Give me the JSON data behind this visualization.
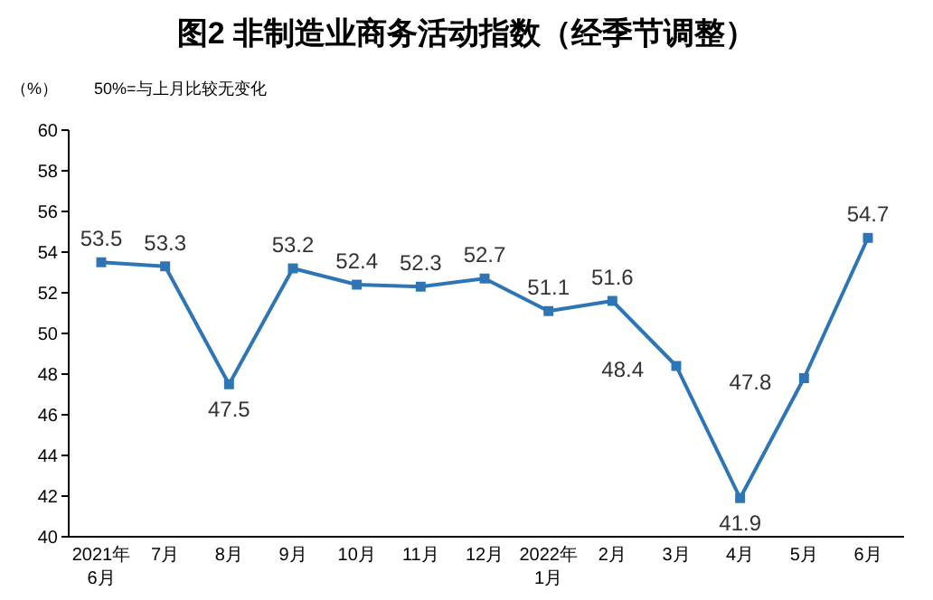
{
  "chart_data": {
    "type": "line",
    "title": "图2  非制造业商务活动指数（经季节调整）",
    "ylabel": "（%）",
    "annotations": [
      "50%=与上月比较无变化"
    ],
    "categories": [
      "2021年\n6月",
      "7月",
      "8月",
      "9月",
      "10月",
      "11月",
      "12月",
      "2022年\n1月",
      "2月",
      "3月",
      "4月",
      "5月",
      "6月"
    ],
    "series": [
      {
        "color": "#2e75b6",
        "values": [
          53.5,
          53.3,
          47.5,
          53.2,
          52.4,
          52.3,
          52.7,
          51.1,
          51.6,
          48.4,
          41.9,
          47.8,
          54.7
        ]
      }
    ],
    "ylim": [
      40,
      60
    ],
    "yticks": [
      40,
      42,
      44,
      46,
      48,
      50,
      52,
      54,
      56,
      58,
      60
    ],
    "marker": "square",
    "data_labels": true,
    "grid": false
  }
}
